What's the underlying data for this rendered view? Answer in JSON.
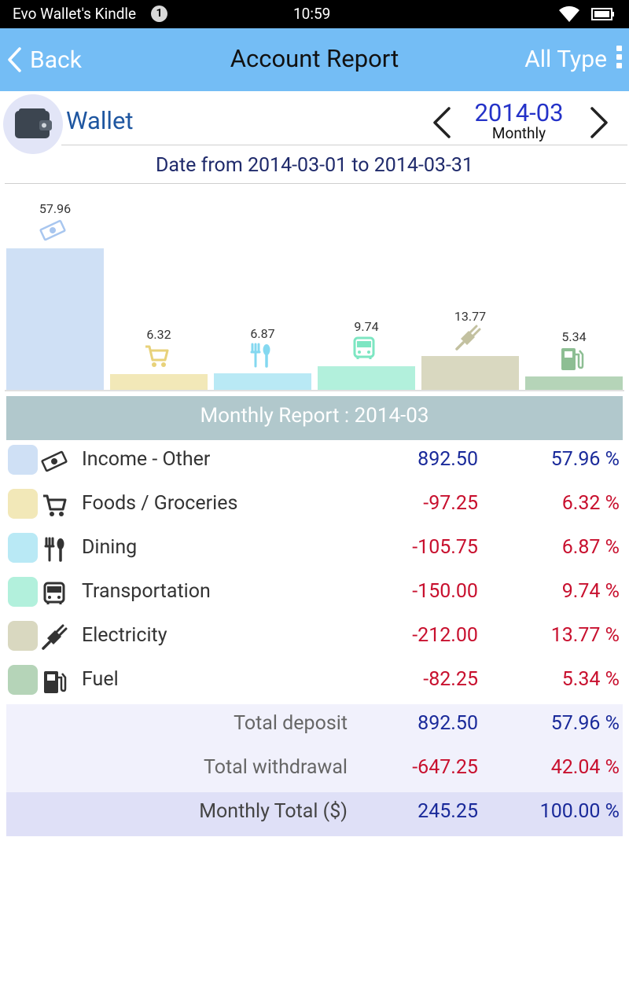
{
  "status_bar": {
    "device_name": "Evo Wallet's Kindle",
    "notification_count": "1",
    "time": "10:59"
  },
  "app_bar": {
    "back_label": "Back",
    "title": "Account Report",
    "type_label": "All Type"
  },
  "account": {
    "name": "Wallet",
    "period": "2014-03",
    "period_mode": "Monthly"
  },
  "date_range": "Date from 2014-03-01 to 2014-03-31",
  "chart_data": {
    "type": "bar",
    "categories": [
      "Income - Other",
      "Foods / Groceries",
      "Dining",
      "Transportation",
      "Electricity",
      "Fuel"
    ],
    "values": [
      57.96,
      6.32,
      6.87,
      9.74,
      13.77,
      5.34
    ],
    "value_labels": [
      "57.96",
      "6.32",
      "6.87",
      "9.74",
      "13.77",
      "5.34"
    ],
    "colors": [
      "#cfe0f5",
      "#f2e8b8",
      "#b9e9f5",
      "#b2f0dc",
      "#d9d8c0",
      "#b5d4b8"
    ],
    "icon_colors": [
      "#a8c6ef",
      "#e8d27a",
      "#84d8f0",
      "#7de6c2",
      "#c3c1a0",
      "#8dbe93"
    ],
    "icons": [
      "money-icon",
      "cart-icon",
      "fork-knife-icon",
      "bus-icon",
      "plug-icon",
      "fuel-pump-icon"
    ],
    "unit": "%",
    "ylim": [
      0,
      60
    ]
  },
  "report": {
    "header": "Monthly Report : 2014-03",
    "rows": [
      {
        "label": "Income - Other",
        "amount": "892.50",
        "percent": "57.96 %",
        "sign": "pos"
      },
      {
        "label": "Foods / Groceries",
        "amount": "-97.25",
        "percent": "6.32 %",
        "sign": "neg"
      },
      {
        "label": "Dining",
        "amount": "-105.75",
        "percent": "6.87 %",
        "sign": "neg"
      },
      {
        "label": "Transportation",
        "amount": "-150.00",
        "percent": "9.74 %",
        "sign": "neg"
      },
      {
        "label": "Electricity",
        "amount": "-212.00",
        "percent": "13.77 %",
        "sign": "neg"
      },
      {
        "label": "Fuel",
        "amount": "-82.25",
        "percent": "5.34 %",
        "sign": "neg"
      }
    ],
    "totals": [
      {
        "label": "Total deposit",
        "amount": "892.50",
        "percent": "57.96 %",
        "sign": "pos"
      },
      {
        "label": "Total withdrawal",
        "amount": "-647.25",
        "percent": "42.04 %",
        "sign": "neg"
      },
      {
        "label": "Monthly Total ($)",
        "amount": "245.25",
        "percent": "100.00 %",
        "sign": "pos"
      }
    ]
  },
  "colors": {
    "app_bar": "#74bdf5",
    "report_header": "#b1c8cc",
    "totals_bg": "#f1f1fc",
    "monthly_total_bg": "#dfe0f7",
    "positive": "#1a2a9a",
    "negative": "#c8102e"
  }
}
